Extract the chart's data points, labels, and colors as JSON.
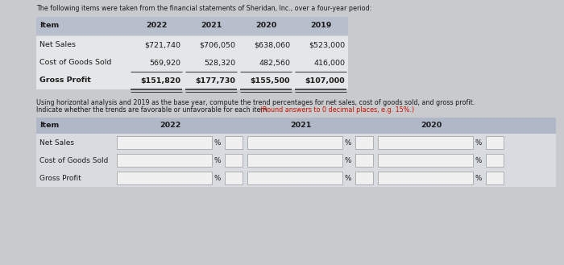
{
  "title_text": "The following items were taken from the financial statements of Sheridan, Inc., over a four-year period:",
  "top_table": {
    "headers": [
      "Item",
      "2022",
      "2021",
      "2020",
      "2019"
    ],
    "rows": [
      [
        "Net Sales",
        "$721,740",
        "$706,050",
        "$638,060",
        "$523,000"
      ],
      [
        "Cost of Goods Sold",
        "569,920",
        "528,320",
        "482,560",
        "416,000"
      ],
      [
        "Gross Profit",
        "$151,820",
        "$177,730",
        "$155,500",
        "$107,000"
      ]
    ],
    "header_bg": "#b8bfcc",
    "row_bg": "#e4e6e8",
    "text_color": "#1a1a1a"
  },
  "instruction_line1": "Using horizontal analysis and 2019 as the base year, compute the trend percentages for net sales, cost of goods sold, and gross profit.",
  "instruction_line2_normal": "Indicate whether the trends are favorable or unfavorable for each item. ",
  "instruction_line2_red": "(Round answers to 0 decimal places, e.g. 15%.)",
  "bottom_table": {
    "header_bg": "#b0b8c8",
    "row_bg": "#d8dce0",
    "input_bg": "#f0f0f0",
    "text_color": "#1a1a1a",
    "year_labels": [
      "2022",
      "2021",
      "2020"
    ],
    "row_items": [
      "Net Sales",
      "Cost of Goods Sold",
      "Gross Profit"
    ]
  },
  "bg_color": "#c8cace",
  "font_size_title": 5.8,
  "font_size_table": 6.8,
  "font_size_instr": 5.8
}
